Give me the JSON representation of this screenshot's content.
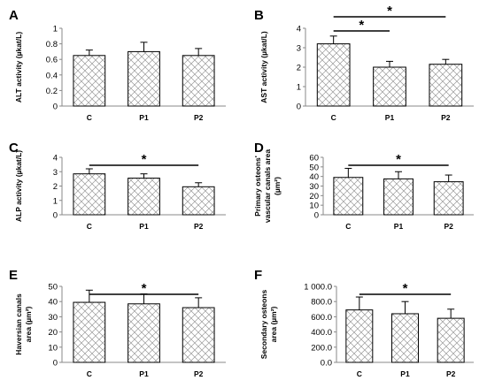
{
  "figure": {
    "colors": {
      "bar_fill": "#ffffff",
      "bar_pattern": "#9a9a9a",
      "bar_edge": "#000000",
      "axis": "#888888"
    },
    "bar_pattern_icon": "crosshatch-diamond"
  },
  "chart_data": [
    {
      "panel": "A",
      "type": "bar",
      "categories": [
        "C",
        "P1",
        "P2"
      ],
      "values": [
        0.65,
        0.7,
        0.65
      ],
      "errors": [
        0.07,
        0.12,
        0.09
      ],
      "ylabel": "ALT activity (µkat/L)",
      "ylabel_lines": [
        "ALT activity (µkat/L)"
      ],
      "ylim": [
        0,
        1
      ],
      "yticks": [
        "0",
        "0.2",
        "0.4",
        "0.6",
        "0.8",
        "1"
      ],
      "grid": false,
      "significance": []
    },
    {
      "panel": "B",
      "type": "bar",
      "categories": [
        "C",
        "P1",
        "P2"
      ],
      "values": [
        3.2,
        2.0,
        2.15
      ],
      "errors": [
        0.4,
        0.3,
        0.25
      ],
      "ylabel": "AST activity (µkat/L)",
      "ylabel_lines": [
        "AST activity (µkat/L)"
      ],
      "ylim": [
        0,
        4
      ],
      "yticks": [
        "0",
        "1",
        "2",
        "3",
        "4"
      ],
      "grid": false,
      "significance": [
        {
          "from": 0,
          "to": 2,
          "label": "*"
        },
        {
          "from": 0,
          "to": 1,
          "label": "*"
        }
      ]
    },
    {
      "panel": "C",
      "type": "bar",
      "categories": [
        "C",
        "P1",
        "P2"
      ],
      "values": [
        2.85,
        2.55,
        1.95
      ],
      "errors": [
        0.35,
        0.3,
        0.28
      ],
      "ylabel": "ALP activity (µkat/L)",
      "ylabel_lines": [
        "ALP activity (µkat/L)"
      ],
      "ylim": [
        0,
        4
      ],
      "yticks": [
        "0",
        "1",
        "2",
        "3",
        "4"
      ],
      "grid": false,
      "significance": [
        {
          "from": 0,
          "to": 2,
          "label": "*"
        }
      ]
    },
    {
      "panel": "D",
      "type": "bar",
      "categories": [
        "C",
        "P1",
        "P2"
      ],
      "values": [
        39,
        37.5,
        34.5
      ],
      "errors": [
        9.5,
        7.5,
        7
      ],
      "ylabel": "Primary osteons' vascular canals area (µm²)",
      "ylabel_lines": [
        "Primary osteons'",
        "vascular canals area",
        "(µm²)"
      ],
      "ylim": [
        0,
        60
      ],
      "yticks": [
        "0",
        "10",
        "20",
        "30",
        "40",
        "50",
        "60"
      ],
      "grid": false,
      "significance": [
        {
          "from": 0,
          "to": 2,
          "label": "*"
        }
      ]
    },
    {
      "panel": "E",
      "type": "bar",
      "categories": [
        "C",
        "P1",
        "P2"
      ],
      "values": [
        39.5,
        38.5,
        36
      ],
      "errors": [
        8,
        6.5,
        6.5
      ],
      "ylabel": "Haversian canals area (µm²)",
      "ylabel_lines": [
        "Haversian canals",
        "area (µm²)"
      ],
      "ylim": [
        0,
        50
      ],
      "yticks": [
        "0",
        "10",
        "20",
        "30",
        "40",
        "50"
      ],
      "grid": false,
      "significance": [
        {
          "from": 0,
          "to": 2,
          "label": "*"
        }
      ]
    },
    {
      "panel": "F",
      "type": "bar",
      "categories": [
        "C",
        "P1",
        "P2"
      ],
      "values": [
        690,
        640,
        580
      ],
      "errors": [
        170,
        160,
        120
      ],
      "ylabel": "Secondary osteons area (µm²)",
      "ylabel_lines": [
        "Secondary osteons",
        "area (µm²)"
      ],
      "ylim": [
        0,
        1000
      ],
      "yticks": [
        "0.0",
        "200.0",
        "400.0",
        "600.0",
        "800.0",
        "1 000.0"
      ],
      "grid": false,
      "significance": [
        {
          "from": 0,
          "to": 2,
          "label": "*"
        }
      ]
    }
  ]
}
